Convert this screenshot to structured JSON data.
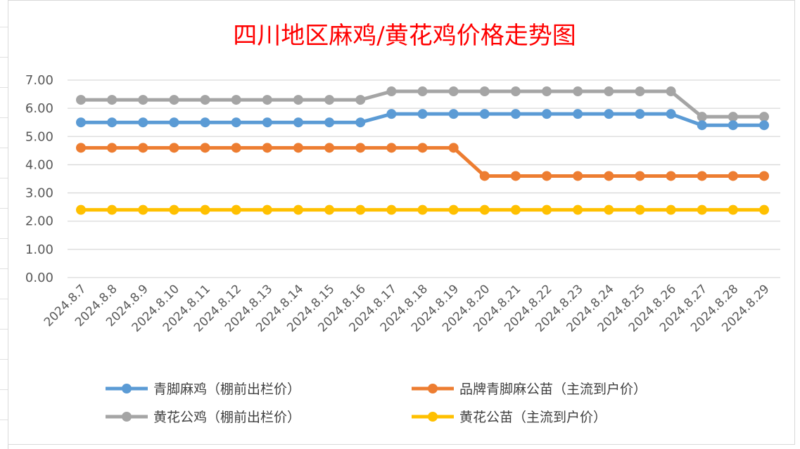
{
  "chart_data": {
    "type": "line",
    "title": "四川地区麻鸡/黄花鸡价格走势图",
    "xlabel": "",
    "ylabel": "",
    "ylim": [
      0,
      7
    ],
    "yticks": [
      "0.00",
      "1.00",
      "2.00",
      "3.00",
      "4.00",
      "5.00",
      "6.00",
      "7.00"
    ],
    "grid": true,
    "legend_position": "bottom",
    "categories": [
      "2024.8.7",
      "2024.8.8",
      "2024.8.9",
      "2024.8.10",
      "2024.8.11",
      "2024.8.12",
      "2024.8.13",
      "2024.8.14",
      "2024.8.15",
      "2024.8.16",
      "2024.8.17",
      "2024.8.18",
      "2024.8.19",
      "2024.8.20",
      "2024.8.21",
      "2024.8.22",
      "2024.8.23",
      "2024.8.24",
      "2024.8.25",
      "2024.8.26",
      "2024.8.27",
      "2024.8.28",
      "2024.8.29"
    ],
    "series": [
      {
        "name": "青脚麻鸡（棚前出栏价）",
        "color": "#5b9bd5",
        "values": [
          5.5,
          5.5,
          5.5,
          5.5,
          5.5,
          5.5,
          5.5,
          5.5,
          5.5,
          5.5,
          5.8,
          5.8,
          5.8,
          5.8,
          5.8,
          5.8,
          5.8,
          5.8,
          5.8,
          5.8,
          5.4,
          5.4,
          5.4
        ]
      },
      {
        "name": "品牌青脚麻公苗（主流到户价）",
        "color": "#ed7d31",
        "values": [
          4.6,
          4.6,
          4.6,
          4.6,
          4.6,
          4.6,
          4.6,
          4.6,
          4.6,
          4.6,
          4.6,
          4.6,
          4.6,
          3.6,
          3.6,
          3.6,
          3.6,
          3.6,
          3.6,
          3.6,
          3.6,
          3.6,
          3.6
        ]
      },
      {
        "name": "黄花公鸡（棚前出栏价）",
        "color": "#a5a5a5",
        "values": [
          6.3,
          6.3,
          6.3,
          6.3,
          6.3,
          6.3,
          6.3,
          6.3,
          6.3,
          6.3,
          6.6,
          6.6,
          6.6,
          6.6,
          6.6,
          6.6,
          6.6,
          6.6,
          6.6,
          6.6,
          5.7,
          5.7,
          5.7
        ]
      },
      {
        "name": "黄花公苗（主流到户价）",
        "color": "#ffc000",
        "values": [
          2.4,
          2.4,
          2.4,
          2.4,
          2.4,
          2.4,
          2.4,
          2.4,
          2.4,
          2.4,
          2.4,
          2.4,
          2.4,
          2.4,
          2.4,
          2.4,
          2.4,
          2.4,
          2.4,
          2.4,
          2.4,
          2.4,
          2.4
        ]
      }
    ]
  }
}
